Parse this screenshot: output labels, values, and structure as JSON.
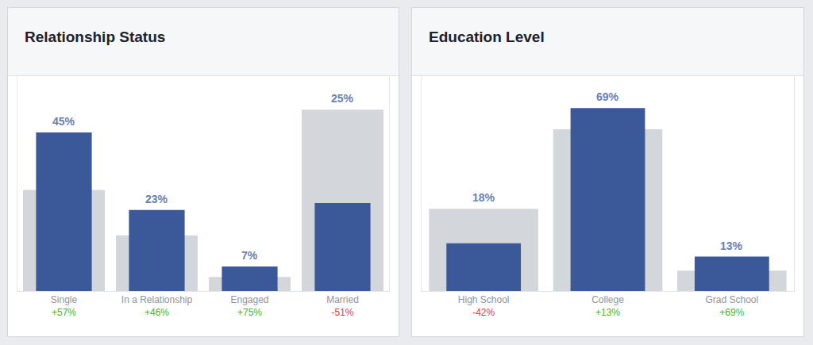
{
  "chart_data": [
    {
      "type": "bar",
      "title": "Relationship Status",
      "categories": [
        "Single",
        "In a Relationship",
        "Engaged",
        "Married"
      ],
      "series": [
        {
          "color": "#d3d6db",
          "values": [
            28.7,
            15.8,
            4,
            51.5
          ]
        },
        {
          "color": "#3b5998",
          "values": [
            45,
            23,
            7,
            25
          ],
          "value_labels": [
            "45%",
            "23%",
            "7%",
            "25%"
          ]
        }
      ],
      "changes": [
        57,
        46,
        75,
        -51
      ],
      "change_labels": [
        "+57%",
        "+46%",
        "+75%",
        "-51%"
      ],
      "ylim": [
        0,
        61
      ],
      "yticks": [],
      "grid": false,
      "data_labels": true,
      "tick_labels": "x",
      "stacked": false
    },
    {
      "type": "bar",
      "title": "Education Level",
      "categories": [
        "High School",
        "College",
        "Grad School"
      ],
      "series": [
        {
          "color": "#d3d6db",
          "values": [
            31,
            61,
            7.7
          ]
        },
        {
          "color": "#3b5998",
          "values": [
            18,
            69,
            13
          ],
          "value_labels": [
            "18%",
            "69%",
            "13%"
          ]
        }
      ],
      "changes": [
        -42,
        13,
        69
      ],
      "change_labels": [
        "-42%",
        "+13%",
        "+69%"
      ],
      "ylim": [
        0,
        81
      ],
      "yticks": [],
      "grid": false,
      "data_labels": true,
      "tick_labels": "x",
      "stacked": false
    }
  ]
}
